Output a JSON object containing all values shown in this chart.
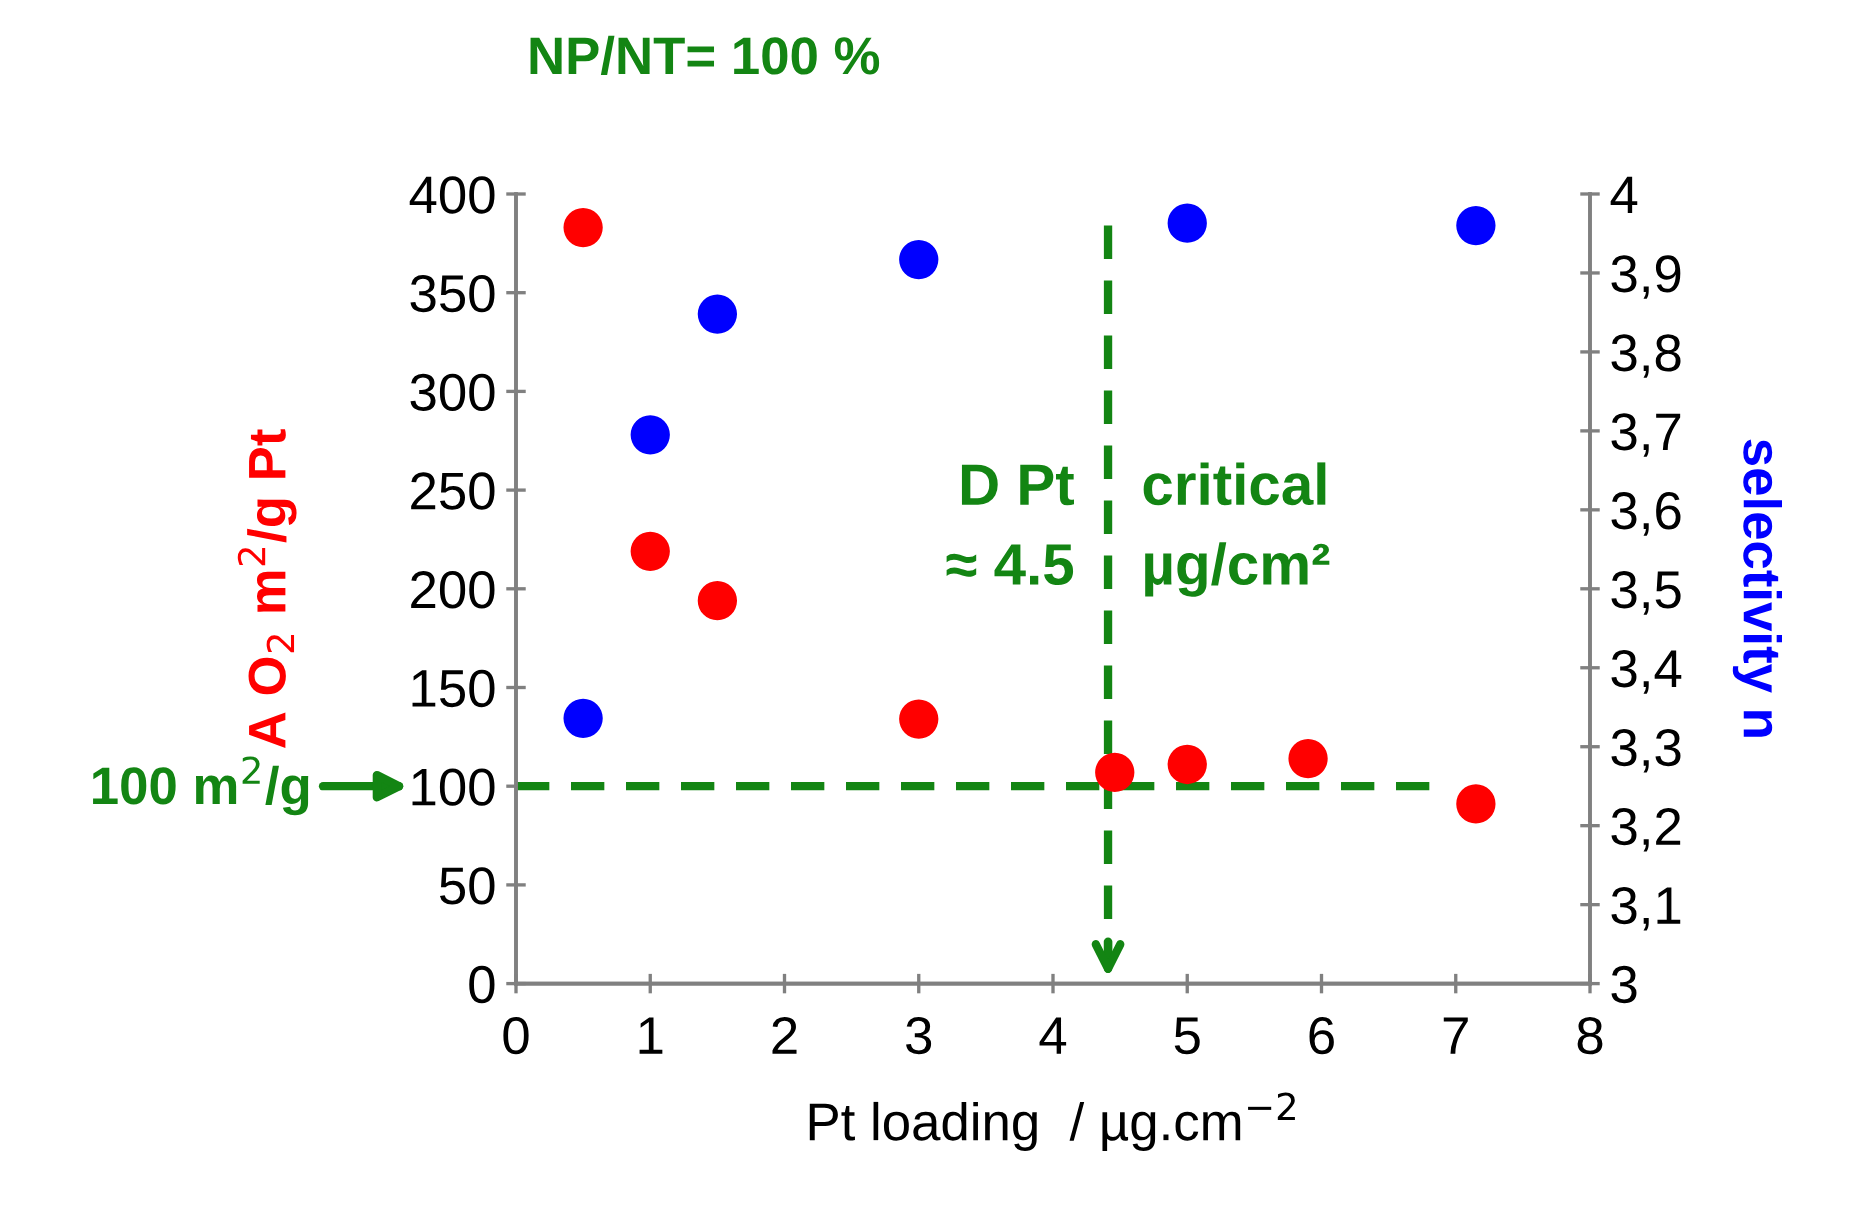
{
  "chart_data": {
    "type": "scatter",
    "title": "NP/NT= 100 %",
    "xlabel": "Pt loading  / µg.cm$^{−2}$",
    "ylabel": "A O$_{2}$ m$^{2}$/g Pt",
    "y2label": "selectivity n",
    "xlim": [
      0,
      8
    ],
    "xticks": [
      0,
      1,
      2,
      3,
      4,
      5,
      6,
      7,
      8
    ],
    "ylim": [
      0,
      400
    ],
    "yticks": [
      0,
      50,
      100,
      150,
      200,
      250,
      300,
      350,
      400
    ],
    "y2lim": [
      3,
      4
    ],
    "y2ticks": [
      3,
      {
        "value": 3.1,
        "label": "3,1"
      },
      {
        "value": 3.2,
        "label": "3,2"
      },
      {
        "value": 3.3,
        "label": "3,3"
      },
      {
        "value": 3.4,
        "label": "3,4"
      },
      {
        "value": 3.5,
        "label": "3,5"
      },
      {
        "value": 3.6,
        "label": "3,6"
      },
      {
        "value": 3.7,
        "label": "3,7"
      },
      {
        "value": 3.8,
        "label": "3,8"
      },
      {
        "value": 3.9,
        "label": "3,9"
      },
      4
    ],
    "marker": "circle",
    "grid": false,
    "legend": false,
    "series": [
      {
        "color": "#ff0000",
        "x": [
          0.5,
          1,
          1.5,
          3,
          4.46,
          5,
          5.9,
          7.15
        ],
        "values": [
          383,
          219,
          194,
          134,
          107,
          111,
          114,
          91
        ]
      },
      {
        "color": "#0000ff",
        "axis": "y2",
        "x": [
          0.5,
          1,
          1.5,
          3,
          5,
          7.15
        ],
        "values": [
          3.336,
          3.695,
          3.848,
          3.917,
          3.963,
          3.96
        ]
      }
    ],
    "ref_lines": [
      {
        "axis": "y",
        "value": 100,
        "label": "100 m$^{2}$/g",
        "color": "#138513",
        "line_style": "dashed"
      },
      {
        "axis": "x",
        "value": 4.41,
        "label": null,
        "color": "#138513",
        "line_style": "dashed"
      }
    ],
    "annotations": [
      {
        "text": "D Pt\n≈ 4.5",
        "x": 4.41,
        "y": 230
      },
      {
        "text": "critical\nµg/cm²",
        "x": 4.41,
        "y": 230
      }
    ]
  }
}
